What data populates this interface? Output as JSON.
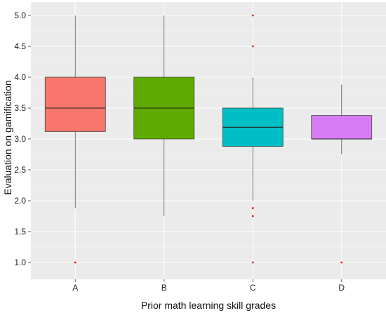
{
  "chart_data": {
    "type": "box",
    "title": "",
    "xlabel": "Prior math learning skill grades",
    "ylabel": "Evaluation on gamification",
    "categories": [
      "A",
      "B",
      "C",
      "D"
    ],
    "ylim": [
      0.9,
      5.05
    ],
    "yticks": [
      "1.0",
      "1.5",
      "2.0",
      "2.5",
      "3.0",
      "3.5",
      "4.0",
      "4.5",
      "5.0"
    ],
    "grid": true,
    "legend": "none",
    "boxes": [
      {
        "category": "A",
        "whisker_low": 1.88,
        "q1": 3.12,
        "median": 3.5,
        "q3": 4.0,
        "whisker_high": 5.0,
        "outliers": [
          1.0
        ],
        "color": "#F8766D"
      },
      {
        "category": "B",
        "whisker_low": 1.75,
        "q1": 3.0,
        "median": 3.5,
        "q3": 4.0,
        "whisker_high": 5.0,
        "outliers": [],
        "color": "#5FAA00"
      },
      {
        "category": "C",
        "whisker_low": 2.0,
        "q1": 2.88,
        "median": 3.19,
        "q3": 3.5,
        "whisker_high": 4.0,
        "outliers": [
          5.0,
          4.5,
          1.88,
          1.75,
          1.0
        ],
        "color": "#00BFC4"
      },
      {
        "category": "D",
        "whisker_low": 2.75,
        "q1": 3.0,
        "median": 3.0,
        "q3": 3.38,
        "whisker_high": 3.88,
        "outliers": [
          1.0
        ],
        "color": "#D77BF5"
      }
    ],
    "colors": {
      "panel_background": "#EBEBEB",
      "grid_major": "#FFFFFF",
      "outlier": "#FF0000"
    }
  }
}
